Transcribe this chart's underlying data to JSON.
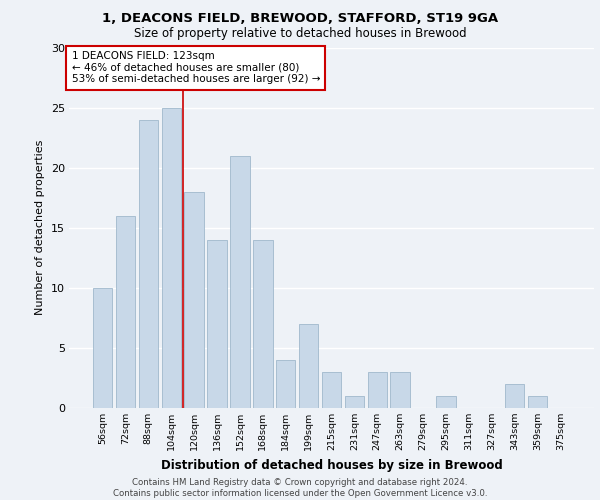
{
  "title1": "1, DEACONS FIELD, BREWOOD, STAFFORD, ST19 9GA",
  "title2": "Size of property relative to detached houses in Brewood",
  "xlabel": "Distribution of detached houses by size in Brewood",
  "ylabel": "Number of detached properties",
  "categories": [
    "56sqm",
    "72sqm",
    "88sqm",
    "104sqm",
    "120sqm",
    "136sqm",
    "152sqm",
    "168sqm",
    "184sqm",
    "199sqm",
    "215sqm",
    "231sqm",
    "247sqm",
    "263sqm",
    "279sqm",
    "295sqm",
    "311sqm",
    "327sqm",
    "343sqm",
    "359sqm",
    "375sqm"
  ],
  "values": [
    10,
    16,
    24,
    25,
    18,
    14,
    21,
    14,
    4,
    7,
    3,
    1,
    3,
    3,
    0,
    1,
    0,
    0,
    2,
    1,
    0
  ],
  "bar_color": "#c8d8e8",
  "bar_edge_color": "#a0b8cc",
  "annotation_text": "1 DEACONS FIELD: 123sqm\n← 46% of detached houses are smaller (80)\n53% of semi-detached houses are larger (92) →",
  "annotation_box_color": "#ffffff",
  "annotation_box_edge_color": "#cc0000",
  "vline_color": "#cc0000",
  "ylim": [
    0,
    30
  ],
  "yticks": [
    0,
    5,
    10,
    15,
    20,
    25,
    30
  ],
  "footer": "Contains HM Land Registry data © Crown copyright and database right 2024.\nContains public sector information licensed under the Open Government Licence v3.0.",
  "bg_color": "#eef2f7",
  "plot_bg_color": "#eef2f7"
}
